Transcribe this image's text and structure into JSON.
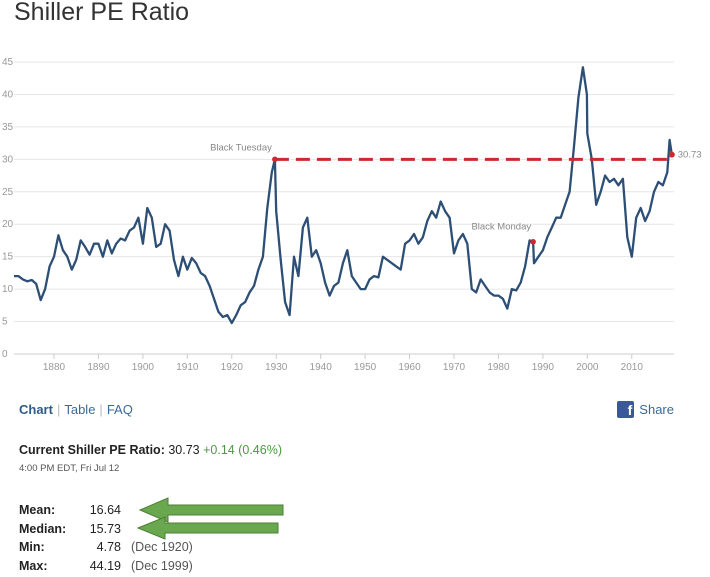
{
  "title": "Shiller PE Ratio",
  "chart_data": {
    "type": "line",
    "title": "Shiller PE Ratio",
    "xlim": [
      1871,
      2019.5
    ],
    "ylim": [
      0,
      45
    ],
    "x_ticks": [
      "1880",
      "1890",
      "1900",
      "1910",
      "1920",
      "1930",
      "1940",
      "1950",
      "1960",
      "1970",
      "1980",
      "1990",
      "2000",
      "2010"
    ],
    "y_ticks": [
      "0",
      "5",
      "10",
      "15",
      "20",
      "25",
      "30",
      "35",
      "40",
      "45"
    ],
    "grid": true,
    "line_color": "#2d4f75",
    "series": [
      {
        "x": [
          1871,
          1872,
          1873,
          1874,
          1875,
          1876,
          1877,
          1878,
          1879,
          1880,
          1881,
          1882,
          1883,
          1884,
          1885,
          1886,
          1887,
          1888,
          1889,
          1890,
          1891,
          1892,
          1893,
          1894,
          1895,
          1896,
          1897,
          1898,
          1899,
          1900,
          1901,
          1902,
          1903,
          1904,
          1905,
          1906,
          1907,
          1908,
          1909,
          1910,
          1911,
          1912,
          1913,
          1914,
          1915,
          1916,
          1917,
          1918,
          1919,
          1920,
          1921,
          1922,
          1923,
          1924,
          1925,
          1926,
          1927,
          1928,
          1929,
          1929.7,
          1930,
          1931,
          1932,
          1933,
          1934,
          1935,
          1936,
          1937,
          1938,
          1939,
          1940,
          1941,
          1942,
          1943,
          1944,
          1945,
          1946,
          1947,
          1948,
          1949,
          1950,
          1951,
          1952,
          1953,
          1954,
          1955,
          1956,
          1957,
          1958,
          1959,
          1960,
          1961,
          1962,
          1963,
          1964,
          1965,
          1966,
          1967,
          1968,
          1969,
          1970,
          1971,
          1972,
          1973,
          1974,
          1975,
          1976,
          1977,
          1978,
          1979,
          1980,
          1981,
          1982,
          1983,
          1984,
          1985,
          1986,
          1987,
          1987.8,
          1988,
          1989,
          1990,
          1991,
          1992,
          1993,
          1994,
          1995,
          1996,
          1997,
          1998,
          1999,
          1999.9,
          2000,
          2001,
          2002,
          2003,
          2004,
          2005,
          2006,
          2007,
          2008,
          2009,
          2010,
          2011,
          2012,
          2013,
          2014,
          2015,
          2016,
          2017,
          2018,
          2018.5,
          2019
        ],
        "y": [
          12.0,
          12.0,
          11.5,
          11.2,
          11.4,
          10.8,
          8.3,
          10.0,
          13.5,
          15.0,
          18.3,
          16.0,
          15.0,
          13.0,
          14.5,
          17.5,
          16.5,
          15.3,
          17.0,
          17.0,
          15.0,
          17.5,
          15.5,
          17.0,
          17.8,
          17.5,
          19.0,
          19.5,
          21.0,
          17.0,
          22.5,
          21.0,
          16.5,
          17.0,
          20.0,
          19.0,
          14.5,
          12.0,
          15.0,
          13.0,
          14.8,
          14.0,
          12.5,
          12.0,
          10.5,
          8.5,
          6.5,
          5.7,
          6.0,
          4.78,
          6.0,
          7.5,
          8.0,
          9.5,
          10.5,
          13.0,
          15.0,
          22.5,
          28.0,
          30.0,
          22.0,
          14.5,
          8.0,
          6.0,
          15.0,
          12.0,
          19.5,
          21.0,
          15.0,
          16.0,
          14.0,
          11.0,
          9.0,
          10.5,
          11.0,
          14.0,
          16.0,
          12.0,
          11.0,
          10.0,
          10.0,
          11.5,
          12.0,
          11.8,
          15.0,
          14.5,
          14.0,
          13.5,
          13.0,
          17.0,
          17.5,
          18.5,
          17.0,
          18.0,
          20.5,
          22.0,
          21.0,
          23.5,
          22.0,
          21.0,
          15.5,
          17.5,
          18.5,
          17.0,
          10.0,
          9.5,
          11.5,
          10.5,
          9.5,
          9.0,
          9.0,
          8.5,
          7.0,
          10.0,
          9.8,
          11.0,
          13.5,
          17.5,
          17.3,
          14.0,
          15.0,
          16.0,
          18.0,
          19.5,
          21.0,
          21.0,
          23.0,
          25.0,
          32.0,
          39.5,
          44.19,
          40.0,
          34.0,
          30.0,
          23.0,
          25.0,
          27.5,
          26.5,
          27.0,
          26.0,
          27.0,
          18.0,
          15.0,
          21.0,
          22.5,
          20.5,
          22.0,
          25.0,
          26.5,
          26.0,
          28.0,
          33.0,
          30.73
        ]
      }
    ],
    "reference_line": {
      "y": 30,
      "x_start": 1929.7,
      "x_end": 2019,
      "color": "#cc2a2f",
      "style": "dashed"
    },
    "annotations": [
      {
        "text": "Black Tuesday",
        "x": 1929.7,
        "y": 30
      },
      {
        "text": "Black Monday",
        "x": 1987.8,
        "y": 17.3
      },
      {
        "text": "30.73",
        "x": 2019,
        "y": 30.73
      }
    ]
  },
  "tabs": {
    "chart": "Chart",
    "table": "Table",
    "faq": "FAQ"
  },
  "share": {
    "label": "Share",
    "icon": "facebook-icon"
  },
  "current": {
    "label": "Current Shiller PE Ratio:",
    "value": "30.73",
    "change": "+0.14 (0.46%)",
    "timestamp": "4:00 PM EDT, Fri Jul 12"
  },
  "stats": {
    "mean": {
      "label": "Mean:",
      "value": "16.64",
      "date": ""
    },
    "median": {
      "label": "Median:",
      "value": "15.73",
      "date": ""
    },
    "min": {
      "label": "Min:",
      "value": "4.78",
      "date": "(Dec 1920)"
    },
    "max": {
      "label": "Max:",
      "value": "44.19",
      "date": "(Dec 1999)"
    }
  },
  "colors": {
    "arrow": "#6aa84f",
    "arrow_outline": "#4e7f36",
    "accent": "#3a6a99",
    "positive": "#4a9a3f"
  }
}
